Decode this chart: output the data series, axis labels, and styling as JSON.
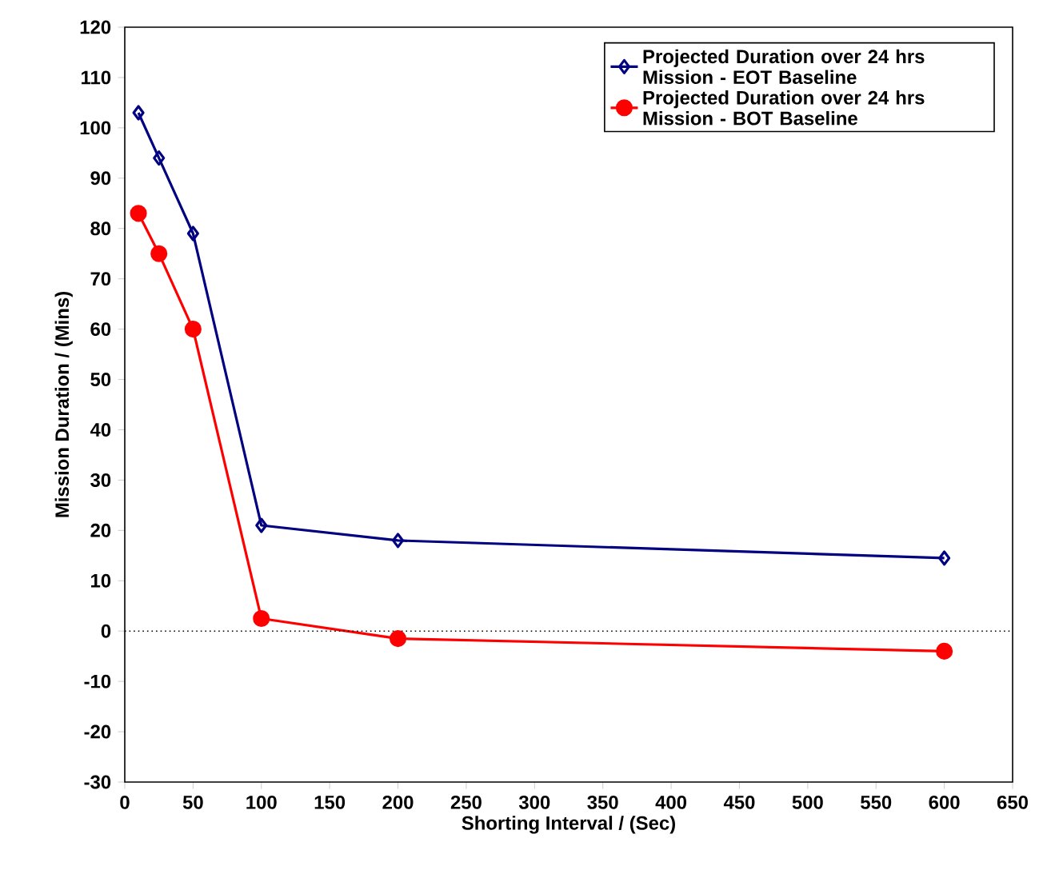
{
  "chart_data": {
    "type": "line",
    "xlabel": "Shorting Interval / (Sec)",
    "ylabel": "Mission Duration / (Mins)",
    "xlim": [
      0,
      650
    ],
    "xticks": [
      0,
      50,
      100,
      150,
      200,
      250,
      300,
      350,
      400,
      450,
      500,
      550,
      600,
      650
    ],
    "ylim": [
      -30,
      120
    ],
    "yticks": [
      -30,
      -20,
      -10,
      0,
      10,
      20,
      30,
      40,
      50,
      60,
      70,
      80,
      90,
      100,
      110,
      120
    ],
    "x": [
      10,
      25,
      50,
      100,
      200,
      600
    ],
    "series": [
      {
        "name": "Projected Duration over 24 hrs Mission - EOT Baseline",
        "color": "#000080",
        "marker": "diamond",
        "values": [
          103,
          94,
          79,
          21,
          18,
          14.5
        ]
      },
      {
        "name": "Projected Duration over 24 hrs Mission - BOT Baseline",
        "color": "#ff0000",
        "marker": "circle",
        "values": [
          83,
          75,
          60,
          2.5,
          -1.5,
          -4
        ]
      }
    ],
    "ref_lines": [
      {
        "axis": "y",
        "value": 0,
        "color": "#000000",
        "line_style": "dotted"
      }
    ],
    "legend": "top right",
    "grid": false,
    "line_style": "solid"
  }
}
